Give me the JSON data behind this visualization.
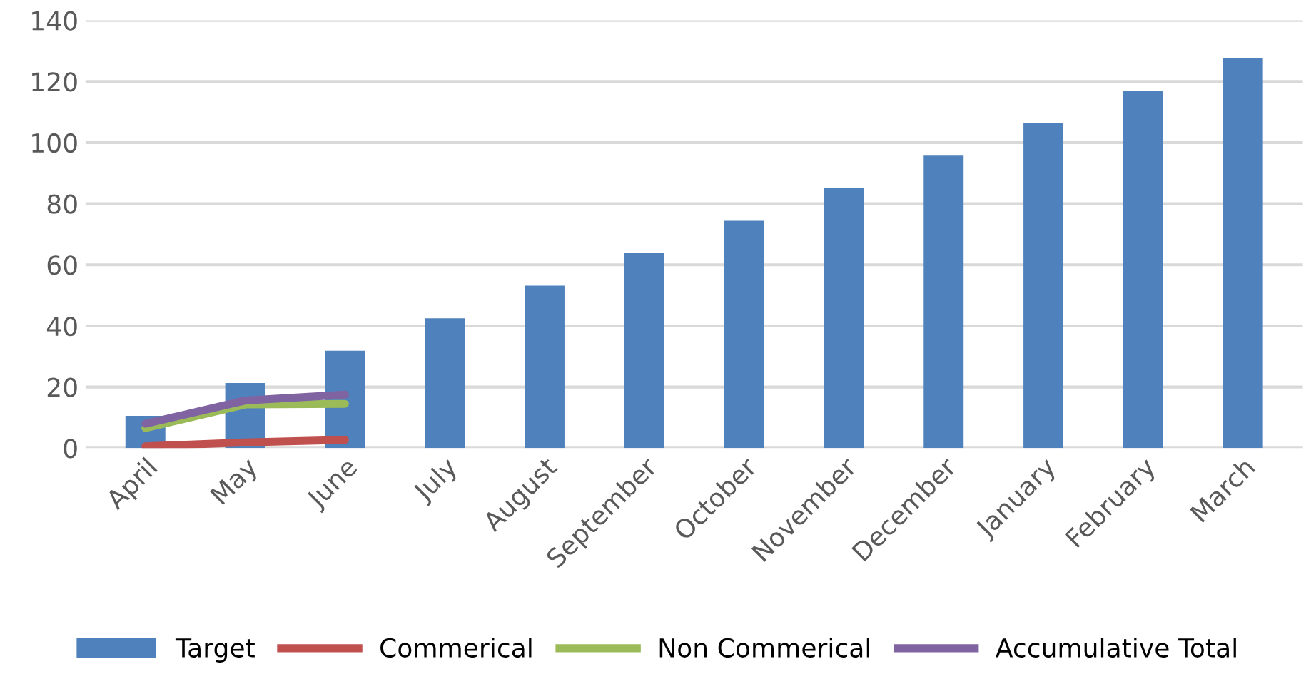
{
  "chart_data": {
    "type": "bar",
    "categories": [
      "April",
      "May",
      "June",
      "July",
      "August",
      "September",
      "October",
      "November",
      "December",
      "January",
      "February",
      "March"
    ],
    "series": [
      {
        "name": "Target",
        "color": "#4f81bd",
        "values": [
          10.6,
          21.3,
          31.9,
          42.5,
          53.2,
          63.8,
          74.4,
          85.1,
          95.7,
          106.3,
          117.0,
          127.6
        ]
      },
      {
        "name": "Commerical",
        "type": "line",
        "color": "#c0504d",
        "values": [
          0.6,
          1.9,
          2.7,
          null,
          null,
          null,
          null,
          null,
          null,
          null,
          null,
          null
        ]
      },
      {
        "name": "Non Commerical",
        "type": "line",
        "color": "#9bbb59",
        "values": [
          6.6,
          14.3,
          14.5,
          null,
          null,
          null,
          null,
          null,
          null,
          null,
          null,
          null
        ]
      },
      {
        "name": "Accumulative Total",
        "type": "line",
        "color": "#8064a2",
        "values": [
          8.0,
          15.6,
          17.5,
          null,
          null,
          null,
          null,
          null,
          null,
          null,
          null,
          null
        ]
      }
    ],
    "ylim": [
      0,
      140
    ],
    "yticks": [
      0,
      20,
      40,
      60,
      80,
      100,
      120,
      140
    ],
    "grid": "y",
    "legend": "bottom",
    "marker": "none"
  }
}
